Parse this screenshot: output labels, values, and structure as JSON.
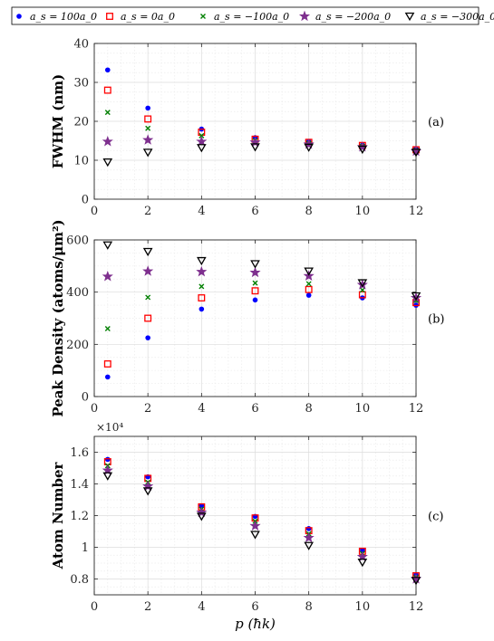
{
  "legend": [
    {
      "label": "a_s = 100a_0",
      "marker": "circle",
      "color": "#0000ff"
    },
    {
      "label": "a_s = 0a_0",
      "marker": "square",
      "color": "#ff0000"
    },
    {
      "label": "a_s = −100a_0",
      "marker": "x",
      "color": "#008000"
    },
    {
      "label": "a_s = −200a_0",
      "marker": "star",
      "color": "#7e2f8e"
    },
    {
      "label": "a_s = −300a_0",
      "marker": "triangle-down",
      "color": "#000000"
    }
  ],
  "xlabel": "p (ħk)",
  "chart_data": [
    {
      "type": "scatter",
      "panel": "(a)",
      "ylabel": "FWHM (nm)",
      "xlim": [
        0,
        12
      ],
      "ylim": [
        0,
        40
      ],
      "x_ticks": [
        0,
        2,
        4,
        6,
        8,
        10,
        12
      ],
      "y_ticks": [
        0,
        10,
        20,
        30,
        40
      ],
      "grid": true,
      "x": [
        0.5,
        2,
        4,
        6,
        8,
        10,
        12
      ],
      "series": [
        {
          "name": "a_s = 100a_0",
          "values": [
            33.2,
            23.4,
            18.0,
            15.8,
            14.8,
            13.9,
            12.9
          ]
        },
        {
          "name": "a_s = 0a_0",
          "values": [
            28.0,
            20.6,
            17.2,
            15.4,
            14.6,
            13.8,
            12.7
          ]
        },
        {
          "name": "a_s = −100a_0",
          "values": [
            22.3,
            18.2,
            16.3,
            15.0,
            14.3,
            13.6,
            12.5
          ]
        },
        {
          "name": "a_s = −200a_0",
          "values": [
            14.8,
            15.2,
            14.8,
            14.6,
            14.1,
            13.4,
            12.3
          ]
        },
        {
          "name": "a_s = −300a_0",
          "values": [
            9.5,
            12.0,
            13.2,
            13.4,
            13.3,
            12.8,
            12.0
          ]
        }
      ]
    },
    {
      "type": "scatter",
      "panel": "(b)",
      "ylabel": "Peak Density (atoms/μm²)",
      "xlim": [
        0,
        12
      ],
      "ylim": [
        0,
        600
      ],
      "x_ticks": [
        0,
        2,
        4,
        6,
        8,
        10,
        12
      ],
      "y_ticks": [
        0,
        200,
        400,
        600
      ],
      "grid": true,
      "x": [
        0.5,
        2,
        4,
        6,
        8,
        10,
        12
      ],
      "series": [
        {
          "name": "a_s = 100a_0",
          "values": [
            75,
            225,
            335,
            370,
            388,
            378,
            350
          ]
        },
        {
          "name": "a_s = 0a_0",
          "values": [
            125,
            300,
            378,
            405,
            410,
            390,
            360
          ]
        },
        {
          "name": "a_s = −100a_0",
          "values": [
            260,
            380,
            422,
            435,
            432,
            408,
            368
          ]
        },
        {
          "name": "a_s = −200a_0",
          "values": [
            460,
            480,
            478,
            475,
            462,
            428,
            378
          ]
        },
        {
          "name": "a_s = −300a_0",
          "values": [
            580,
            555,
            520,
            508,
            480,
            435,
            385
          ]
        }
      ]
    },
    {
      "type": "scatter",
      "panel": "(c)",
      "ylabel": "Atom Number",
      "exponent": "×10⁴",
      "xlim": [
        0,
        12
      ],
      "ylim": [
        0.7,
        1.7
      ],
      "x_ticks": [
        0,
        2,
        4,
        6,
        8,
        10,
        12
      ],
      "y_ticks": [
        0.8,
        1,
        1.2,
        1.4,
        1.6
      ],
      "grid": true,
      "x": [
        0.5,
        2,
        4,
        6,
        8,
        10,
        12
      ],
      "series": [
        {
          "name": "a_s = 100a_0",
          "values": [
            1.555,
            1.445,
            1.262,
            1.195,
            1.118,
            0.982,
            0.825
          ]
        },
        {
          "name": "a_s = 0a_0",
          "values": [
            1.54,
            1.435,
            1.255,
            1.185,
            1.105,
            0.975,
            0.82
          ]
        },
        {
          "name": "a_s = −100a_0",
          "values": [
            1.515,
            1.41,
            1.24,
            1.165,
            1.085,
            0.96,
            0.81
          ]
        },
        {
          "name": "a_s = −200a_0",
          "values": [
            1.485,
            1.385,
            1.22,
            1.135,
            1.06,
            0.94,
            0.8
          ]
        },
        {
          "name": "a_s = −300a_0",
          "values": [
            1.45,
            1.355,
            1.195,
            1.08,
            1.01,
            0.905,
            0.79
          ]
        }
      ]
    }
  ]
}
